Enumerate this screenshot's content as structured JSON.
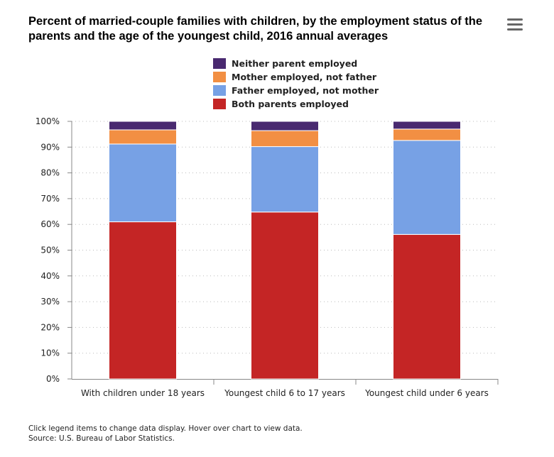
{
  "chart_data": {
    "type": "bar",
    "stacked": true,
    "title": "Percent of married-couple families with children, by the employment status of the parents and the age of the youngest child, 2016 annual averages",
    "categories": [
      "With children under 18 years",
      "Youngest child 6 to 17 years",
      "Youngest child under 6 years"
    ],
    "series": [
      {
        "name": "Both parents employed",
        "color": "#c42525",
        "values": [
          61.0,
          64.8,
          56.1
        ]
      },
      {
        "name": "Father employed, not mother",
        "color": "#77a1e5",
        "values": [
          30.2,
          25.4,
          36.5
        ]
      },
      {
        "name": "Mother employed, not father",
        "color": "#f28f43",
        "values": [
          5.5,
          6.2,
          4.4
        ]
      },
      {
        "name": "Neither parent employed",
        "color": "#492970",
        "values": [
          3.3,
          3.6,
          3.0
        ]
      }
    ],
    "legend_order": [
      3,
      2,
      1,
      0
    ],
    "ylim": [
      0,
      100
    ],
    "yticks": [
      "0%",
      "10%",
      "20%",
      "30%",
      "40%",
      "50%",
      "60%",
      "70%",
      "80%",
      "90%",
      "100%"
    ],
    "grid": true,
    "legend_position": "top-center"
  },
  "footer": {
    "note": "Click legend items to change data display. Hover over chart to view data.",
    "source": "Source: U.S. Bureau of Labor Statistics."
  },
  "menu_icon": "hamburger-menu-icon"
}
